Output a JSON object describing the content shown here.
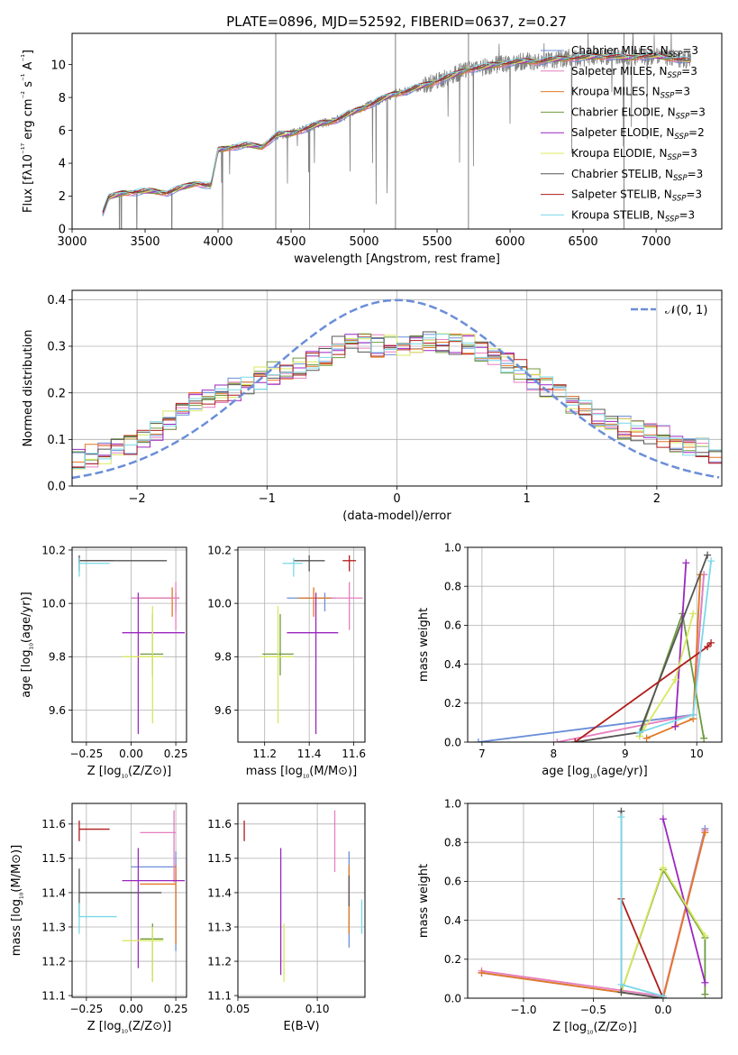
{
  "chart_data": [
    {
      "type": "line",
      "title": "PLATE=0896, MJD=52592, FIBERID=0637, z=0.27",
      "xlabel": "wavelength [Angstrom, rest frame]",
      "ylabel": "Flux [fλ10⁻¹⁷ erg cm⁻² s⁻¹ A⁻¹]",
      "xlim": [
        3000,
        7450
      ],
      "ylim": [
        0,
        11.9
      ],
      "xticks": [
        "3000",
        "3500",
        "4000",
        "4500",
        "5000",
        "5500",
        "6000",
        "6500",
        "7000"
      ],
      "yticks": [
        "0",
        "2",
        "4",
        "6",
        "8",
        "10"
      ],
      "grid": false,
      "legend_position": "upper right",
      "spectrum_anchors": {
        "x": [
          3210,
          3250,
          3350,
          3450,
          3550,
          3650,
          3750,
          3850,
          3900,
          3950,
          4000,
          4100,
          4200,
          4300,
          4400,
          4500,
          4600,
          4700,
          4800,
          4900,
          5000,
          5100,
          5200,
          5300,
          5400,
          5500,
          5600,
          5700,
          5800,
          5900,
          6000,
          6100,
          6200,
          6300,
          6400,
          6500,
          6600,
          6700,
          6800,
          6900,
          7000,
          7100,
          7240
        ],
        "y": [
          1.0,
          1.9,
          2.2,
          2.25,
          2.3,
          2.2,
          2.5,
          2.8,
          2.7,
          2.6,
          4.8,
          5.0,
          5.1,
          5.0,
          5.7,
          5.8,
          6.1,
          6.4,
          6.6,
          7.0,
          7.4,
          7.8,
          8.2,
          8.4,
          8.7,
          9.0,
          9.3,
          9.7,
          9.8,
          10.0,
          10.1,
          10.2,
          10.2,
          10.3,
          10.4,
          10.4,
          10.5,
          10.5,
          10.4,
          10.5,
          10.5,
          10.4,
          10.2
        ]
      },
      "legend": [
        {
          "label": "Chabrier MILES, N",
          "sub": "SSP",
          "suffix": "=3",
          "color": "#6b8ed8"
        },
        {
          "label": "Salpeter MILES, N",
          "sub": "SSP",
          "suffix": "=3",
          "color": "#e67fc0"
        },
        {
          "label": "Kroupa MILES, N",
          "sub": "SSP",
          "suffix": "=3",
          "color": "#e37723"
        },
        {
          "label": "Chabrier ELODIE, N",
          "sub": "SSP",
          "suffix": "=3",
          "color": "#6e9a3e"
        },
        {
          "label": "Salpeter ELODIE, N",
          "sub": "SSP",
          "suffix": "=2",
          "color": "#9a27c0"
        },
        {
          "label": "Kroupa ELODIE, N",
          "sub": "SSP",
          "suffix": "=3",
          "color": "#d8e860"
        },
        {
          "label": "Chabrier STELIB, N",
          "sub": "SSP",
          "suffix": "=3",
          "color": "#555555"
        },
        {
          "label": "Salpeter STELIB, N",
          "sub": "SSP",
          "suffix": "=3",
          "color": "#b01c1c"
        },
        {
          "label": "Kroupa STELIB, N",
          "sub": "SSP",
          "suffix": "=3",
          "color": "#7ad8e8"
        }
      ]
    },
    {
      "type": "line",
      "xlabel": "(data-model)/error",
      "ylabel": "Normed distribution",
      "xlim": [
        -2.5,
        2.5
      ],
      "ylim": [
        0,
        0.42
      ],
      "xticks": [
        "−2",
        "−1",
        "0",
        "1",
        "2"
      ],
      "yticks": [
        "0.0",
        "0.1",
        "0.2",
        "0.3",
        "0.4"
      ],
      "grid": true,
      "legend": [
        {
          "label": "𝒩(0, 1)",
          "color": "#6b8ed8"
        }
      ],
      "gaussian": {
        "mean": 0,
        "sigma": 1
      },
      "histogram_base": {
        "x": [
          -2.5,
          -2.2,
          -2.0,
          -1.8,
          -1.6,
          -1.4,
          -1.2,
          -1.0,
          -0.8,
          -0.6,
          -0.4,
          -0.2,
          0.0,
          0.2,
          0.4,
          0.6,
          0.8,
          1.0,
          1.2,
          1.4,
          1.6,
          1.8,
          2.0,
          2.2,
          2.5
        ],
        "y": [
          0.06,
          0.07,
          0.1,
          0.13,
          0.17,
          0.2,
          0.21,
          0.24,
          0.25,
          0.27,
          0.31,
          0.3,
          0.3,
          0.31,
          0.31,
          0.3,
          0.27,
          0.24,
          0.2,
          0.17,
          0.14,
          0.12,
          0.11,
          0.09,
          0.07
        ]
      },
      "series_colors": [
        "#6b8ed8",
        "#e67fc0",
        "#e37723",
        "#6e9a3e",
        "#9a27c0",
        "#d8e860",
        "#555555",
        "#b01c1c",
        "#7ad8e8"
      ]
    },
    {
      "type": "scatter",
      "xlabel": "Z [log₁₀(Z/Z⊙)]",
      "ylabel": "age  [log₁₀(age/yr)]",
      "xlim": [
        -0.33,
        0.31
      ],
      "ylim": [
        9.48,
        10.21
      ],
      "xticks": [
        "−0.25",
        "0.00",
        "0.25"
      ],
      "yticks": [
        "9.6",
        "9.8",
        "10.0",
        "10.2"
      ],
      "grid": true,
      "points": [
        {
          "color": "#b01c1c",
          "x": -0.29,
          "y": 10.16,
          "xlo": -0.29,
          "xhi": -0.1,
          "ylo": 10.15,
          "yhi": 10.17
        },
        {
          "color": "#555555",
          "x": -0.29,
          "y": 10.16,
          "xlo": -0.29,
          "xhi": 0.2,
          "ylo": 10.12,
          "yhi": 10.18
        },
        {
          "color": "#7ad8e8",
          "x": -0.29,
          "y": 10.15,
          "xlo": -0.29,
          "xhi": -0.12,
          "ylo": 10.1,
          "yhi": 10.17
        },
        {
          "color": "#6b8ed8",
          "x": 0.25,
          "y": 10.02,
          "xlo": 0.0,
          "xhi": 0.27,
          "ylo": 9.97,
          "yhi": 10.04
        },
        {
          "color": "#e37723",
          "x": 0.23,
          "y": 10.02,
          "xlo": 0.05,
          "xhi": 0.27,
          "ylo": 9.95,
          "yhi": 10.06
        },
        {
          "color": "#e67fc0",
          "x": 0.25,
          "y": 10.02,
          "xlo": 0.0,
          "xhi": 0.27,
          "ylo": 9.9,
          "yhi": 10.08
        },
        {
          "color": "#9a27c0",
          "x": 0.04,
          "y": 9.89,
          "xlo": -0.05,
          "xhi": 0.3,
          "ylo": 9.51,
          "yhi": 10.04
        },
        {
          "color": "#6e9a3e",
          "x": 0.12,
          "y": 9.81,
          "xlo": 0.05,
          "xhi": 0.18,
          "ylo": 9.73,
          "yhi": 9.96
        },
        {
          "color": "#d8e860",
          "x": 0.12,
          "y": 9.8,
          "xlo": -0.05,
          "xhi": 0.18,
          "ylo": 9.55,
          "yhi": 9.99
        }
      ]
    },
    {
      "type": "scatter",
      "xlabel": "mass [log₁₀(M/M⊙)]",
      "xlim": [
        11.08,
        11.65
      ],
      "ylim": [
        9.48,
        10.21
      ],
      "xticks": [
        "11.2",
        "11.4",
        "11.6"
      ],
      "yticks": [
        "9.6",
        "9.8",
        "10.0",
        "10.2"
      ],
      "grid": true,
      "points": [
        {
          "color": "#b01c1c",
          "x": 11.58,
          "y": 10.16,
          "xlo": 11.55,
          "xhi": 11.61,
          "ylo": 10.12,
          "yhi": 10.18
        },
        {
          "color": "#555555",
          "x": 11.4,
          "y": 10.16,
          "xlo": 11.33,
          "xhi": 11.47,
          "ylo": 10.12,
          "yhi": 10.18
        },
        {
          "color": "#7ad8e8",
          "x": 11.33,
          "y": 10.15,
          "xlo": 11.28,
          "xhi": 11.37,
          "ylo": 10.1,
          "yhi": 10.17
        },
        {
          "color": "#6b8ed8",
          "x": 11.47,
          "y": 10.02,
          "xlo": 11.3,
          "xhi": 11.52,
          "ylo": 9.97,
          "yhi": 10.04
        },
        {
          "color": "#e37723",
          "x": 11.42,
          "y": 10.02,
          "xlo": 11.35,
          "xhi": 11.5,
          "ylo": 9.95,
          "yhi": 10.06
        },
        {
          "color": "#e67fc0",
          "x": 11.58,
          "y": 10.02,
          "xlo": 11.5,
          "xhi": 11.64,
          "ylo": 9.9,
          "yhi": 10.08
        },
        {
          "color": "#9a27c0",
          "x": 11.43,
          "y": 9.89,
          "xlo": 11.3,
          "xhi": 11.53,
          "ylo": 9.51,
          "yhi": 10.04
        },
        {
          "color": "#6e9a3e",
          "x": 11.27,
          "y": 9.81,
          "xlo": 11.19,
          "xhi": 11.33,
          "ylo": 9.73,
          "yhi": 9.96
        },
        {
          "color": "#d8e860",
          "x": 11.26,
          "y": 9.8,
          "xlo": 11.18,
          "xhi": 11.33,
          "ylo": 9.55,
          "yhi": 9.99
        }
      ]
    },
    {
      "type": "line",
      "xlabel": "age  [log₁₀(age/yr)]",
      "ylabel": "mass weight",
      "xlim": [
        6.8,
        10.35
      ],
      "ylim": [
        0,
        1.0
      ],
      "xticks": [
        "7",
        "8",
        "9",
        "10"
      ],
      "yticks": [
        "0.0",
        "0.2",
        "0.4",
        "0.6",
        "0.8",
        "1.0"
      ],
      "grid": true,
      "series": [
        {
          "color": "#6b8ed8",
          "x": [
            6.95,
            9.95,
            10.1
          ],
          "y": [
            0.0,
            0.14,
            0.86
          ]
        },
        {
          "color": "#e67fc0",
          "x": [
            8.05,
            9.95,
            10.1
          ],
          "y": [
            0.0,
            0.14,
            0.86
          ]
        },
        {
          "color": "#e37723",
          "x": [
            9.3,
            9.95,
            10.05
          ],
          "y": [
            0.02,
            0.12,
            0.86
          ]
        },
        {
          "color": "#6e9a3e",
          "x": [
            9.2,
            9.8,
            10.1
          ],
          "y": [
            0.03,
            0.66,
            0.02
          ]
        },
        {
          "color": "#9a27c0",
          "x": [
            9.7,
            9.85
          ],
          "y": [
            0.08,
            0.92
          ]
        },
        {
          "color": "#d8e860",
          "x": [
            9.2,
            9.7,
            9.95
          ],
          "y": [
            0.03,
            0.32,
            0.66
          ]
        },
        {
          "color": "#555555",
          "x": [
            8.3,
            9.2,
            10.15
          ],
          "y": [
            0.0,
            0.05,
            0.96
          ]
        },
        {
          "color": "#b01c1c",
          "x": [
            8.3,
            10.15,
            10.2
          ],
          "y": [
            0.0,
            0.49,
            0.51
          ]
        },
        {
          "color": "#7ad8e8",
          "x": [
            9.2,
            9.95,
            10.2
          ],
          "y": [
            0.05,
            0.14,
            0.93
          ]
        }
      ]
    },
    {
      "type": "scatter",
      "xlabel": "Z [log₁₀(Z/Z⊙)]",
      "ylabel": "mass [log₁₀(M/M⊙)]",
      "xlim": [
        -0.33,
        0.31
      ],
      "ylim": [
        11.095,
        11.66
      ],
      "xticks": [
        "−0.25",
        "0.00",
        "0.25"
      ],
      "yticks": [
        "11.1",
        "11.2",
        "11.3",
        "11.4",
        "11.5",
        "11.6"
      ],
      "grid": true,
      "points": [
        {
          "color": "#b01c1c",
          "x": -0.29,
          "y": 11.585,
          "xlo": -0.29,
          "xhi": -0.12,
          "ylo": 11.55,
          "yhi": 11.61
        },
        {
          "color": "#555555",
          "x": -0.29,
          "y": 11.4,
          "xlo": -0.29,
          "xhi": 0.17,
          "ylo": 11.33,
          "yhi": 11.47
        },
        {
          "color": "#7ad8e8",
          "x": -0.29,
          "y": 11.33,
          "xlo": -0.29,
          "xhi": -0.08,
          "ylo": 11.28,
          "yhi": 11.37
        },
        {
          "color": "#6b8ed8",
          "x": 0.25,
          "y": 11.475,
          "xlo": 0.0,
          "xhi": 0.25,
          "ylo": 11.23,
          "yhi": 11.52
        },
        {
          "color": "#e37723",
          "x": 0.25,
          "y": 11.425,
          "xlo": 0.05,
          "xhi": 0.25,
          "ylo": 11.25,
          "yhi": 11.48
        },
        {
          "color": "#e67fc0",
          "x": 0.24,
          "y": 11.575,
          "xlo": 0.05,
          "xhi": 0.25,
          "ylo": 11.43,
          "yhi": 11.64
        },
        {
          "color": "#9a27c0",
          "x": 0.04,
          "y": 11.435,
          "xlo": -0.05,
          "xhi": 0.3,
          "ylo": 11.18,
          "yhi": 11.53
        },
        {
          "color": "#6e9a3e",
          "x": 0.12,
          "y": 11.265,
          "xlo": 0.05,
          "xhi": 0.18,
          "ylo": 11.14,
          "yhi": 11.31
        },
        {
          "color": "#d8e860",
          "x": 0.12,
          "y": 11.26,
          "xlo": -0.05,
          "xhi": 0.18,
          "ylo": 11.14,
          "yhi": 11.3
        }
      ]
    },
    {
      "type": "scatter",
      "xlabel": "E(B-V)",
      "xlim": [
        0.05,
        0.13
      ],
      "ylim": [
        11.095,
        11.66
      ],
      "xticks": [
        "0.05",
        "0.10"
      ],
      "yticks": [
        "11.1",
        "11.2",
        "11.3",
        "11.4",
        "11.5",
        "11.6"
      ],
      "grid": true,
      "points": [
        {
          "color": "#b01c1c",
          "x": 0.054,
          "y": 11.585,
          "ylo": 11.55,
          "yhi": 11.61
        },
        {
          "color": "#9a27c0",
          "x": 0.077,
          "y": 11.435,
          "ylo": 11.16,
          "yhi": 11.53
        },
        {
          "color": "#d8e860",
          "x": 0.079,
          "y": 11.26,
          "ylo": 11.14,
          "yhi": 11.31
        },
        {
          "color": "#e67fc0",
          "x": 0.111,
          "y": 11.575,
          "ylo": 11.46,
          "yhi": 11.64
        },
        {
          "color": "#6b8ed8",
          "x": 0.12,
          "y": 11.475,
          "ylo": 11.24,
          "yhi": 11.52
        },
        {
          "color": "#e37723",
          "x": 0.12,
          "y": 11.425,
          "ylo": 11.28,
          "yhi": 11.48
        },
        {
          "color": "#555555",
          "x": 0.12,
          "y": 11.4,
          "ylo": 11.36,
          "yhi": 11.45
        },
        {
          "color": "#7ad8e8",
          "x": 0.128,
          "y": 11.33,
          "ylo": 11.28,
          "yhi": 11.38
        }
      ]
    },
    {
      "type": "line",
      "xlabel": "Z [log₁₀(Z/Z⊙)]",
      "ylabel": "mass weight",
      "xlim": [
        -1.4,
        0.42
      ],
      "ylim": [
        0,
        1.0
      ],
      "xticks": [
        "−1.0",
        "−0.5",
        "0.0"
      ],
      "yticks": [
        "0.0",
        "0.2",
        "0.4",
        "0.6",
        "0.8",
        "1.0"
      ],
      "grid": true,
      "series": [
        {
          "color": "#6b8ed8",
          "x": [
            -1.3,
            0.0,
            0.3
          ],
          "y": [
            0.13,
            0.0,
            0.87
          ]
        },
        {
          "color": "#e67fc0",
          "x": [
            -1.3,
            0.0,
            0.3
          ],
          "y": [
            0.14,
            0.01,
            0.86
          ]
        },
        {
          "color": "#e37723",
          "x": [
            -1.3,
            0.0,
            0.3
          ],
          "y": [
            0.13,
            0.0,
            0.85
          ]
        },
        {
          "color": "#6e9a3e",
          "x": [
            -0.3,
            0.0,
            0.3,
            0.3
          ],
          "y": [
            0.03,
            0.66,
            0.31,
            0.02
          ]
        },
        {
          "color": "#9a27c0",
          "x": [
            0.0,
            0.3
          ],
          "y": [
            0.92,
            0.08
          ]
        },
        {
          "color": "#d8e860",
          "x": [
            -0.3,
            0.0,
            0.3
          ],
          "y": [
            0.03,
            0.67,
            0.32
          ]
        },
        {
          "color": "#555555",
          "x": [
            -0.3,
            -0.3,
            0.0
          ],
          "y": [
            0.96,
            0.03,
            0.0
          ]
        },
        {
          "color": "#b01c1c",
          "x": [
            -0.3,
            0.0
          ],
          "y": [
            0.51,
            0.0
          ]
        },
        {
          "color": "#7ad8e8",
          "x": [
            -0.3,
            -0.3,
            0.0
          ],
          "y": [
            0.93,
            0.07,
            0.01
          ]
        }
      ]
    }
  ]
}
